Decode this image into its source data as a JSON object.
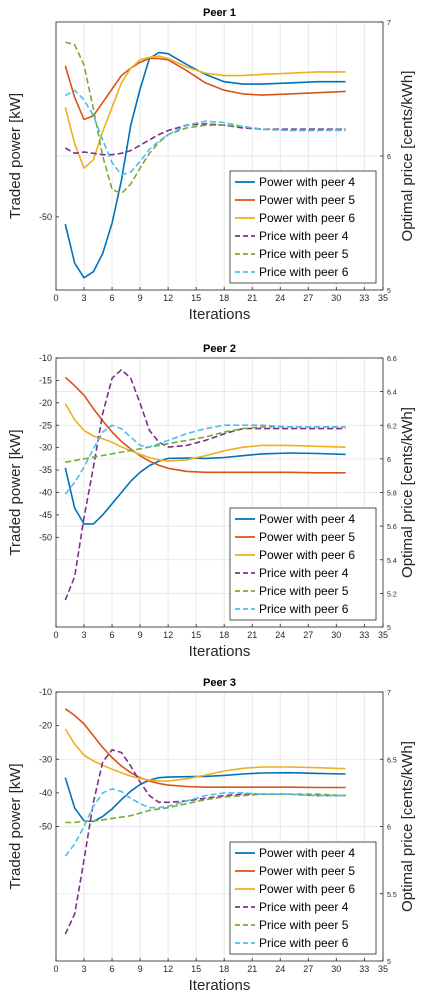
{
  "chart_data": [
    {
      "type": "line",
      "title": "Peer 1",
      "xlabel": "Iterations",
      "ylabel_left": "Traded power [kW]",
      "ylabel_right": "Optimal price [cents/kWh]",
      "xlim": [
        0,
        35
      ],
      "xticks": [
        0,
        3,
        6,
        9,
        12,
        15,
        18,
        21,
        24,
        27,
        30,
        33,
        35
      ],
      "ylim_left": [
        -56,
        -34
      ],
      "yticks_left": [
        -50
      ],
      "ylim_right": [
        5,
        7
      ],
      "yticks_right": [
        5,
        6,
        7
      ],
      "grid": true,
      "legend_position": "bottom-right",
      "series": [
        {
          "name": "Power with peer 4",
          "axis": "left",
          "style": "solid",
          "color": "#0072BD",
          "x": [
            1,
            2,
            3,
            4,
            5,
            6,
            7,
            8,
            9,
            10,
            11,
            12,
            14,
            16,
            18,
            20,
            22,
            25,
            28,
            31
          ],
          "y": [
            -50.6,
            -53.8,
            -55.0,
            -54.5,
            -53.0,
            -50.5,
            -47.0,
            -42.5,
            -39.5,
            -37.0,
            -36.5,
            -36.6,
            -37.5,
            -38.3,
            -38.9,
            -39.1,
            -39.1,
            -39.0,
            -38.9,
            -38.9
          ]
        },
        {
          "name": "Power with peer 5",
          "axis": "left",
          "style": "solid",
          "color": "#D95319",
          "x": [
            1,
            2,
            3,
            4,
            5,
            6,
            7,
            8,
            9,
            10,
            11,
            12,
            14,
            16,
            18,
            20,
            22,
            25,
            28,
            31
          ],
          "y": [
            -37.6,
            -40.2,
            -42.0,
            -41.7,
            -40.6,
            -39.5,
            -38.4,
            -37.8,
            -37.3,
            -37.0,
            -37.0,
            -37.1,
            -38.0,
            -39.0,
            -39.6,
            -39.9,
            -40.0,
            -39.9,
            -39.8,
            -39.7
          ]
        },
        {
          "name": "Power with peer 6",
          "axis": "left",
          "style": "solid",
          "color": "#EDB120",
          "x": [
            1,
            2,
            3,
            4,
            5,
            6,
            7,
            8,
            9,
            10,
            11,
            12,
            14,
            16,
            18,
            20,
            22,
            25,
            28,
            31
          ],
          "y": [
            -41.0,
            -44.0,
            -46.0,
            -45.3,
            -43.0,
            -41.0,
            -39.0,
            -37.8,
            -37.1,
            -36.9,
            -36.8,
            -37.0,
            -37.7,
            -38.2,
            -38.4,
            -38.4,
            -38.3,
            -38.2,
            -38.1,
            -38.1
          ]
        },
        {
          "name": "Price with peer 4",
          "axis": "right",
          "style": "dashed",
          "color": "#7E2F8E",
          "x": [
            1,
            2,
            3,
            4,
            5,
            6,
            7,
            8,
            9,
            10,
            11,
            12,
            14,
            16,
            18,
            20,
            22,
            25,
            28,
            31
          ],
          "y": [
            6.06,
            6.02,
            6.03,
            6.02,
            6.01,
            6.01,
            6.02,
            6.04,
            6.08,
            6.12,
            6.16,
            6.19,
            6.23,
            6.24,
            6.23,
            6.21,
            6.2,
            6.2,
            6.2,
            6.2
          ]
        },
        {
          "name": "Price with peer 5",
          "axis": "right",
          "style": "dashed",
          "color": "#77AC30",
          "x": [
            1,
            2,
            3,
            4,
            5,
            6,
            7,
            8,
            9,
            10,
            11,
            12,
            14,
            16,
            18,
            20,
            22,
            25,
            28,
            31
          ],
          "y": [
            6.85,
            6.83,
            6.68,
            6.35,
            6.0,
            5.75,
            5.72,
            5.79,
            5.91,
            6.02,
            6.1,
            6.16,
            6.21,
            6.23,
            6.23,
            6.22,
            6.2,
            6.19,
            6.19,
            6.2
          ]
        },
        {
          "name": "Price with peer 6",
          "axis": "right",
          "style": "dashed",
          "color": "#4DBEEE",
          "x": [
            1,
            2,
            3,
            4,
            5,
            6,
            7,
            8,
            9,
            10,
            11,
            12,
            14,
            16,
            18,
            20,
            22,
            25,
            28,
            31
          ],
          "y": [
            6.45,
            6.49,
            6.42,
            6.3,
            6.12,
            5.95,
            5.86,
            5.88,
            5.96,
            6.05,
            6.11,
            6.16,
            6.23,
            6.26,
            6.25,
            6.22,
            6.2,
            6.19,
            6.19,
            6.19
          ]
        }
      ]
    },
    {
      "type": "line",
      "title": "Peer 2",
      "xlabel": "Iterations",
      "ylabel_left": "Traded power [kW]",
      "ylabel_right": "Optimal price [cents/kWh]",
      "xlim": [
        0,
        35
      ],
      "xticks": [
        0,
        3,
        6,
        9,
        12,
        15,
        18,
        21,
        24,
        27,
        30,
        33,
        35
      ],
      "ylim_left": [
        -70,
        -10
      ],
      "yticks_left": [
        -10,
        -15,
        -20,
        -25,
        -30,
        -35,
        -40,
        -45,
        -50
      ],
      "ylim_right": [
        5,
        6.6
      ],
      "yticks_right": [
        5,
        5.2,
        5.4,
        5.6,
        5.8,
        6,
        6.2,
        6.4,
        6.6
      ],
      "grid": true,
      "legend_position": "bottom-right",
      "series": [
        {
          "name": "Power with peer 4",
          "axis": "left",
          "style": "solid",
          "color": "#0072BD",
          "x": [
            1,
            2,
            3,
            4,
            5,
            6,
            7,
            8,
            9,
            10,
            11,
            12,
            14,
            16,
            18,
            20,
            22,
            25,
            28,
            31
          ],
          "y": [
            -34.5,
            -43.5,
            -47.0,
            -47.0,
            -45.0,
            -42.5,
            -40.0,
            -37.5,
            -35.5,
            -34.0,
            -33.0,
            -32.4,
            -32.3,
            -32.4,
            -32.2,
            -31.8,
            -31.4,
            -31.2,
            -31.3,
            -31.5
          ]
        },
        {
          "name": "Power with peer 5",
          "axis": "left",
          "style": "solid",
          "color": "#D95319",
          "x": [
            1,
            2,
            3,
            4,
            5,
            6,
            7,
            8,
            9,
            10,
            11,
            12,
            14,
            16,
            18,
            20,
            22,
            25,
            28,
            31
          ],
          "y": [
            -14.3,
            -16.2,
            -18.3,
            -21.3,
            -24.0,
            -26.5,
            -28.6,
            -30.3,
            -31.8,
            -33.0,
            -33.9,
            -34.6,
            -35.3,
            -35.5,
            -35.5,
            -35.5,
            -35.5,
            -35.5,
            -35.6,
            -35.6
          ]
        },
        {
          "name": "Power with peer 6",
          "axis": "left",
          "style": "solid",
          "color": "#EDB120",
          "x": [
            1,
            2,
            3,
            4,
            5,
            6,
            7,
            8,
            9,
            10,
            11,
            12,
            14,
            16,
            18,
            20,
            22,
            25,
            28,
            31
          ],
          "y": [
            -20.2,
            -23.8,
            -26.2,
            -27.4,
            -28.0,
            -28.8,
            -29.8,
            -30.7,
            -31.5,
            -32.2,
            -32.7,
            -33.0,
            -32.7,
            -31.8,
            -30.7,
            -29.9,
            -29.5,
            -29.5,
            -29.7,
            -29.9
          ]
        },
        {
          "name": "Price with peer 4",
          "axis": "right",
          "style": "dashed",
          "color": "#7E2F8E",
          "x": [
            1,
            2,
            3,
            4,
            5,
            6,
            7,
            8,
            9,
            10,
            11,
            12,
            14,
            16,
            18,
            20,
            22,
            25,
            28,
            31
          ],
          "y": [
            5.16,
            5.3,
            5.65,
            5.95,
            6.27,
            6.48,
            6.53,
            6.48,
            6.33,
            6.17,
            6.1,
            6.07,
            6.08,
            6.11,
            6.15,
            6.18,
            6.18,
            6.18,
            6.18,
            6.18
          ]
        },
        {
          "name": "Price with peer 5",
          "axis": "right",
          "style": "dashed",
          "color": "#77AC30",
          "x": [
            1,
            2,
            3,
            4,
            5,
            6,
            7,
            8,
            9,
            10,
            11,
            12,
            14,
            16,
            18,
            20,
            22,
            25,
            28,
            31
          ],
          "y": [
            5.98,
            5.99,
            6.0,
            6.01,
            6.02,
            6.03,
            6.04,
            6.05,
            6.06,
            6.07,
            6.08,
            6.09,
            6.11,
            6.13,
            6.16,
            6.18,
            6.19,
            6.19,
            6.19,
            6.19
          ]
        },
        {
          "name": "Price with peer 6",
          "axis": "right",
          "style": "dashed",
          "color": "#4DBEEE",
          "x": [
            1,
            2,
            3,
            4,
            5,
            6,
            7,
            8,
            9,
            10,
            11,
            12,
            14,
            16,
            18,
            20,
            22,
            25,
            28,
            31
          ],
          "y": [
            5.79,
            5.86,
            5.95,
            6.06,
            6.16,
            6.2,
            6.18,
            6.13,
            6.08,
            6.07,
            6.09,
            6.11,
            6.15,
            6.18,
            6.2,
            6.2,
            6.2,
            6.19,
            6.19,
            6.19
          ]
        }
      ]
    },
    {
      "type": "line",
      "title": "Peer 3",
      "xlabel": "Iterations",
      "ylabel_left": "Traded power [kW]",
      "ylabel_right": "Optimal price [cents/kWh]",
      "xlim": [
        0,
        35
      ],
      "xticks": [
        0,
        3,
        6,
        9,
        12,
        15,
        18,
        21,
        24,
        27,
        30,
        33,
        35
      ],
      "ylim_left": [
        -90,
        -10
      ],
      "yticks_left": [
        -10,
        -20,
        -30,
        -40,
        -50
      ],
      "ylim_right": [
        5,
        7
      ],
      "yticks_right": [
        5,
        5.5,
        6,
        6.5,
        7
      ],
      "grid": true,
      "legend_position": "bottom-right",
      "series": [
        {
          "name": "Power with peer 4",
          "axis": "left",
          "style": "solid",
          "color": "#0072BD",
          "x": [
            1,
            2,
            3,
            4,
            5,
            6,
            7,
            8,
            9,
            10,
            11,
            12,
            14,
            16,
            18,
            20,
            22,
            25,
            28,
            31
          ],
          "y": [
            -35.5,
            -44.5,
            -48.3,
            -48.5,
            -47.0,
            -44.8,
            -42.0,
            -39.5,
            -37.5,
            -36.2,
            -35.5,
            -35.3,
            -35.2,
            -35.1,
            -34.8,
            -34.4,
            -34.1,
            -34.0,
            -34.2,
            -34.4
          ]
        },
        {
          "name": "Power with peer 5",
          "axis": "left",
          "style": "solid",
          "color": "#D95319",
          "x": [
            1,
            2,
            3,
            4,
            5,
            6,
            7,
            8,
            9,
            10,
            11,
            12,
            14,
            16,
            18,
            20,
            22,
            25,
            28,
            31
          ],
          "y": [
            -15.0,
            -17.0,
            -19.5,
            -23.0,
            -26.5,
            -29.5,
            -32.0,
            -34.0,
            -35.5,
            -36.5,
            -37.2,
            -37.7,
            -38.1,
            -38.3,
            -38.3,
            -38.3,
            -38.3,
            -38.3,
            -38.4,
            -38.4
          ]
        },
        {
          "name": "Power with peer 6",
          "axis": "left",
          "style": "solid",
          "color": "#EDB120",
          "x": [
            1,
            2,
            3,
            4,
            5,
            6,
            7,
            8,
            9,
            10,
            11,
            12,
            14,
            16,
            18,
            20,
            22,
            25,
            28,
            31
          ],
          "y": [
            -21.0,
            -25.5,
            -28.8,
            -30.5,
            -31.8,
            -33.0,
            -34.0,
            -35.0,
            -35.7,
            -36.2,
            -36.5,
            -36.5,
            -35.8,
            -34.7,
            -33.5,
            -32.7,
            -32.3,
            -32.3,
            -32.5,
            -32.8
          ]
        },
        {
          "name": "Price with peer 4",
          "axis": "right",
          "style": "dashed",
          "color": "#7E2F8E",
          "x": [
            1,
            2,
            3,
            4,
            5,
            6,
            7,
            8,
            9,
            10,
            11,
            12,
            14,
            16,
            18,
            20,
            22,
            25,
            28,
            31
          ],
          "y": [
            5.2,
            5.35,
            5.75,
            6.18,
            6.48,
            6.57,
            6.55,
            6.45,
            6.33,
            6.23,
            6.18,
            6.18,
            6.19,
            6.21,
            6.23,
            6.24,
            6.24,
            6.24,
            6.23,
            6.23
          ]
        },
        {
          "name": "Price with peer 5",
          "axis": "right",
          "style": "dashed",
          "color": "#77AC30",
          "x": [
            1,
            2,
            3,
            4,
            5,
            6,
            7,
            8,
            9,
            10,
            11,
            12,
            14,
            16,
            18,
            20,
            22,
            25,
            28,
            31
          ],
          "y": [
            6.03,
            6.03,
            6.04,
            6.04,
            6.05,
            6.06,
            6.07,
            6.08,
            6.1,
            6.12,
            6.13,
            6.14,
            6.17,
            6.2,
            6.22,
            6.23,
            6.24,
            6.24,
            6.24,
            6.23
          ]
        },
        {
          "name": "Price with peer 6",
          "axis": "right",
          "style": "dashed",
          "color": "#4DBEEE",
          "x": [
            1,
            2,
            3,
            4,
            5,
            6,
            7,
            8,
            9,
            10,
            11,
            12,
            14,
            16,
            18,
            20,
            22,
            25,
            28,
            31
          ],
          "y": [
            5.78,
            5.87,
            6.0,
            6.15,
            6.25,
            6.28,
            6.26,
            6.21,
            6.17,
            6.14,
            6.14,
            6.15,
            6.19,
            6.23,
            6.25,
            6.25,
            6.24,
            6.24,
            6.23,
            6.23
          ]
        }
      ]
    }
  ]
}
